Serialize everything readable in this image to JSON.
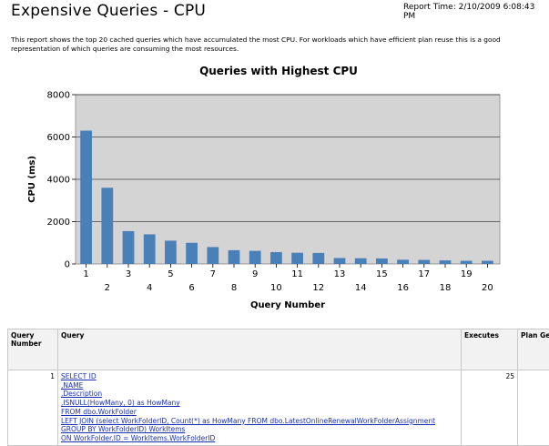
{
  "header": {
    "title": "Expensive Queries - CPU",
    "report_time": "Report Time: 2/10/2009 6:08:43 PM",
    "description": "This report shows the top 20 cached queries which have accumulated the most CPU. For workloads which have efficient plan reuse this is a good representation of which queries are consuming the most resources."
  },
  "chart_data": {
    "type": "bar",
    "title": "Queries with Highest CPU",
    "xlabel": "Query Number",
    "ylabel": "CPU (ms)",
    "ylim": [
      0,
      8000
    ],
    "yticks": [
      0,
      2000,
      4000,
      6000,
      8000
    ],
    "grid": true,
    "colors": {
      "bar": "#4a80b8",
      "plot_bg": "#d4d4d4"
    },
    "categories": [
      "1",
      "2",
      "3",
      "4",
      "5",
      "6",
      "7",
      "8",
      "9",
      "10",
      "11",
      "12",
      "13",
      "14",
      "15",
      "16",
      "17",
      "18",
      "19",
      "20"
    ],
    "values": [
      6300,
      3600,
      1550,
      1400,
      1100,
      1000,
      800,
      650,
      620,
      560,
      530,
      520,
      280,
      270,
      260,
      200,
      190,
      170,
      150,
      150
    ]
  },
  "table": {
    "columns": [
      "Query Number",
      "Query",
      "Executes",
      "Plan Genera"
    ],
    "rows": [
      {
        "number": "1",
        "query_lines": [
          "SELECT ID",
          ",NAME",
          ",Description",
          ",ISNULL(HowMany, 0) as HowMany",
          "FROM dbo.WorkFolder",
          "LEFT JOIN (select WorkFolderID, Count(*) as HowMany FROM dbo.LatestOnlineRenewalWorkFolderAssignment",
          "GROUP BY WorkFolderID) WorkItems",
          "ON WorkFolder.ID = WorkItems.WorkFolderID"
        ],
        "executes": "25",
        "plan_generation": ""
      }
    ]
  }
}
